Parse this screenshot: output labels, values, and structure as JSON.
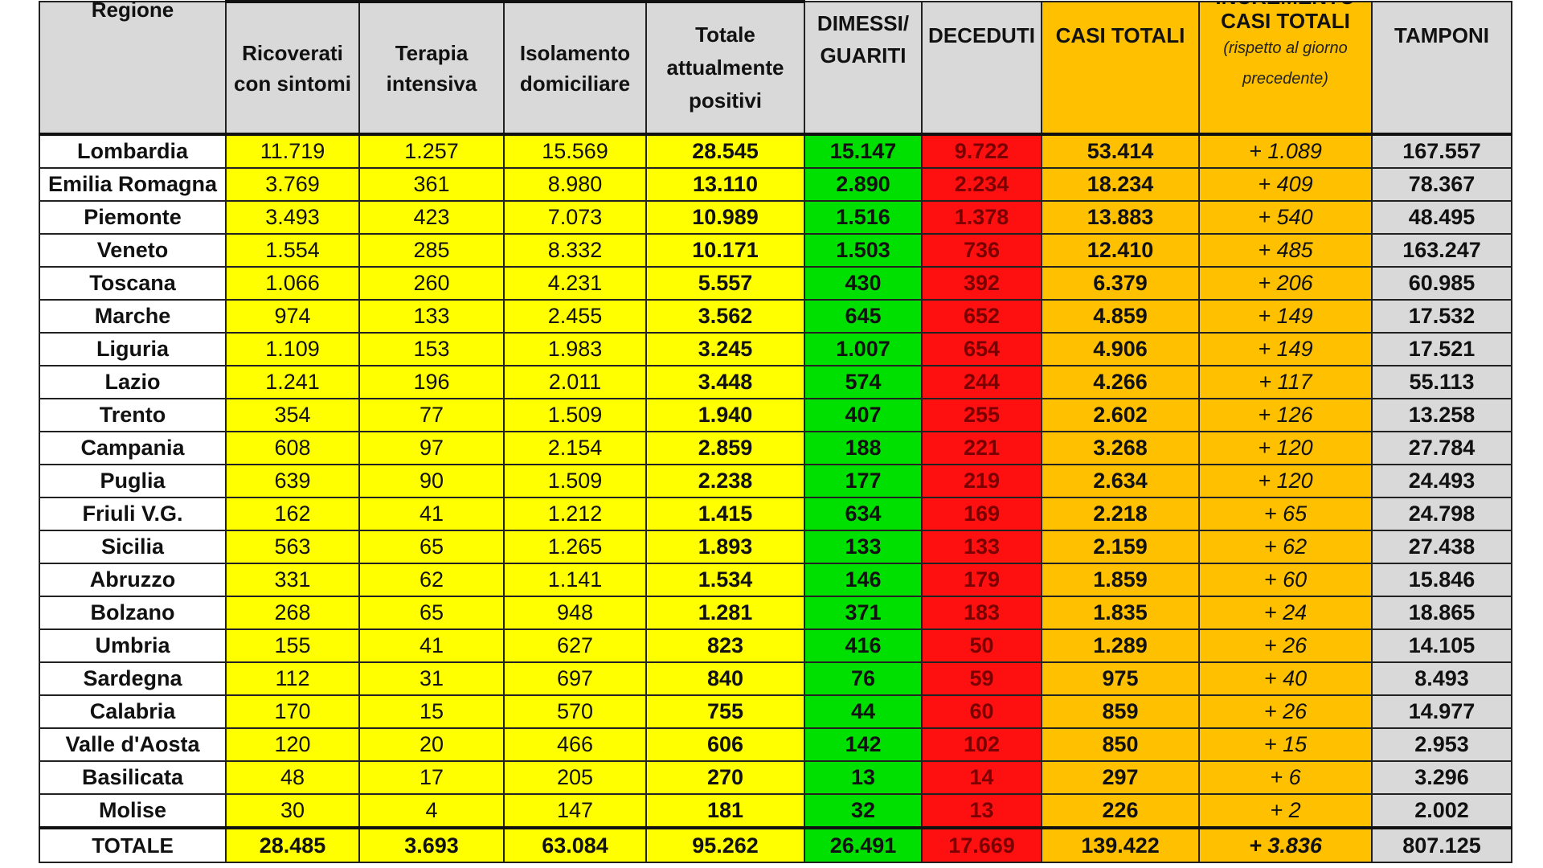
{
  "headers": {
    "regione": "Regione",
    "ricoverati": "Ricoverati con sintomi",
    "terapia": "Terapia intensiva",
    "isolamento": "Isolamento domiciliare",
    "totale_positivi": "Totale attualmente positivi",
    "dimessi": "DIMESSI/ GUARITI",
    "deceduti": "DECEDUTI",
    "casi_totali": "CASI TOTALI",
    "incremento": "INCREMENTO",
    "incremento_sub1": "CASI TOTALI",
    "incremento_sub2": "(rispetto al giorno precedente)",
    "tamponi": "TAMPONI"
  },
  "rows": [
    {
      "regione": "Lombardia",
      "ricoverati": "11.719",
      "terapia": "1.257",
      "isolamento": "15.569",
      "totale_positivi": "28.545",
      "dimessi": "15.147",
      "deceduti": "9.722",
      "casi_totali": "53.414",
      "incremento": "+ 1.089",
      "tamponi": "167.557"
    },
    {
      "regione": "Emilia Romagna",
      "ricoverati": "3.769",
      "terapia": "361",
      "isolamento": "8.980",
      "totale_positivi": "13.110",
      "dimessi": "2.890",
      "deceduti": "2.234",
      "casi_totali": "18.234",
      "incremento": "+ 409",
      "tamponi": "78.367"
    },
    {
      "regione": "Piemonte",
      "ricoverati": "3.493",
      "terapia": "423",
      "isolamento": "7.073",
      "totale_positivi": "10.989",
      "dimessi": "1.516",
      "deceduti": "1.378",
      "casi_totali": "13.883",
      "incremento": "+ 540",
      "tamponi": "48.495"
    },
    {
      "regione": "Veneto",
      "ricoverati": "1.554",
      "terapia": "285",
      "isolamento": "8.332",
      "totale_positivi": "10.171",
      "dimessi": "1.503",
      "deceduti": "736",
      "casi_totali": "12.410",
      "incremento": "+ 485",
      "tamponi": "163.247"
    },
    {
      "regione": "Toscana",
      "ricoverati": "1.066",
      "terapia": "260",
      "isolamento": "4.231",
      "totale_positivi": "5.557",
      "dimessi": "430",
      "deceduti": "392",
      "casi_totali": "6.379",
      "incremento": "+ 206",
      "tamponi": "60.985"
    },
    {
      "regione": "Marche",
      "ricoverati": "974",
      "terapia": "133",
      "isolamento": "2.455",
      "totale_positivi": "3.562",
      "dimessi": "645",
      "deceduti": "652",
      "casi_totali": "4.859",
      "incremento": "+ 149",
      "tamponi": "17.532"
    },
    {
      "regione": "Liguria",
      "ricoverati": "1.109",
      "terapia": "153",
      "isolamento": "1.983",
      "totale_positivi": "3.245",
      "dimessi": "1.007",
      "deceduti": "654",
      "casi_totali": "4.906",
      "incremento": "+ 149",
      "tamponi": "17.521"
    },
    {
      "regione": "Lazio",
      "ricoverati": "1.241",
      "terapia": "196",
      "isolamento": "2.011",
      "totale_positivi": "3.448",
      "dimessi": "574",
      "deceduti": "244",
      "casi_totali": "4.266",
      "incremento": "+ 117",
      "tamponi": "55.113"
    },
    {
      "regione": "Trento",
      "ricoverati": "354",
      "terapia": "77",
      "isolamento": "1.509",
      "totale_positivi": "1.940",
      "dimessi": "407",
      "deceduti": "255",
      "casi_totali": "2.602",
      "incremento": "+ 126",
      "tamponi": "13.258"
    },
    {
      "regione": "Campania",
      "ricoverati": "608",
      "terapia": "97",
      "isolamento": "2.154",
      "totale_positivi": "2.859",
      "dimessi": "188",
      "deceduti": "221",
      "casi_totali": "3.268",
      "incremento": "+ 120",
      "tamponi": "27.784"
    },
    {
      "regione": "Puglia",
      "ricoverati": "639",
      "terapia": "90",
      "isolamento": "1.509",
      "totale_positivi": "2.238",
      "dimessi": "177",
      "deceduti": "219",
      "casi_totali": "2.634",
      "incremento": "+ 120",
      "tamponi": "24.493"
    },
    {
      "regione": "Friuli V.G.",
      "ricoverati": "162",
      "terapia": "41",
      "isolamento": "1.212",
      "totale_positivi": "1.415",
      "dimessi": "634",
      "deceduti": "169",
      "casi_totali": "2.218",
      "incremento": "+ 65",
      "tamponi": "24.798"
    },
    {
      "regione": "Sicilia",
      "ricoverati": "563",
      "terapia": "65",
      "isolamento": "1.265",
      "totale_positivi": "1.893",
      "dimessi": "133",
      "deceduti": "133",
      "casi_totali": "2.159",
      "incremento": "+ 62",
      "tamponi": "27.438"
    },
    {
      "regione": "Abruzzo",
      "ricoverati": "331",
      "terapia": "62",
      "isolamento": "1.141",
      "totale_positivi": "1.534",
      "dimessi": "146",
      "deceduti": "179",
      "casi_totali": "1.859",
      "incremento": "+ 60",
      "tamponi": "15.846"
    },
    {
      "regione": "Bolzano",
      "ricoverati": "268",
      "terapia": "65",
      "isolamento": "948",
      "totale_positivi": "1.281",
      "dimessi": "371",
      "deceduti": "183",
      "casi_totali": "1.835",
      "incremento": "+ 24",
      "tamponi": "18.865"
    },
    {
      "regione": "Umbria",
      "ricoverati": "155",
      "terapia": "41",
      "isolamento": "627",
      "totale_positivi": "823",
      "dimessi": "416",
      "deceduti": "50",
      "casi_totali": "1.289",
      "incremento": "+ 26",
      "tamponi": "14.105"
    },
    {
      "regione": "Sardegna",
      "ricoverati": "112",
      "terapia": "31",
      "isolamento": "697",
      "totale_positivi": "840",
      "dimessi": "76",
      "deceduti": "59",
      "casi_totali": "975",
      "incremento": "+ 40",
      "tamponi": "8.493"
    },
    {
      "regione": "Calabria",
      "ricoverati": "170",
      "terapia": "15",
      "isolamento": "570",
      "totale_positivi": "755",
      "dimessi": "44",
      "deceduti": "60",
      "casi_totali": "859",
      "incremento": "+ 26",
      "tamponi": "14.977"
    },
    {
      "regione": "Valle d'Aosta",
      "ricoverati": "120",
      "terapia": "20",
      "isolamento": "466",
      "totale_positivi": "606",
      "dimessi": "142",
      "deceduti": "102",
      "casi_totali": "850",
      "incremento": "+ 15",
      "tamponi": "2.953"
    },
    {
      "regione": "Basilicata",
      "ricoverati": "48",
      "terapia": "17",
      "isolamento": "205",
      "totale_positivi": "270",
      "dimessi": "13",
      "deceduti": "14",
      "casi_totali": "297",
      "incremento": "+ 6",
      "tamponi": "3.296"
    },
    {
      "regione": "Molise",
      "ricoverati": "30",
      "terapia": "4",
      "isolamento": "147",
      "totale_positivi": "181",
      "dimessi": "32",
      "deceduti": "13",
      "casi_totali": "226",
      "incremento": "+ 2",
      "tamponi": "2.002"
    }
  ],
  "totale": {
    "regione": "TOTALE",
    "ricoverati": "28.485",
    "terapia": "3.693",
    "isolamento": "63.084",
    "totale_positivi": "95.262",
    "dimessi": "26.491",
    "deceduti": "17.669",
    "casi_totali": "139.422",
    "incremento": "+ 3.836",
    "tamponi": "807.125"
  },
  "colors": {
    "header_grey": "#d9d9d9",
    "yellow": "#ffff00",
    "green": "#00e000",
    "red": "#ff1010",
    "orange": "#ffc000",
    "grey": "#d9d9d9"
  }
}
